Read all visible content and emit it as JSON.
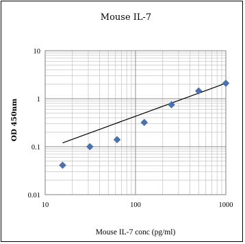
{
  "chart_data": {
    "type": "scatter",
    "title": "Mouse IL-7",
    "xlabel": "Mouse IL-7 conc (pg/ml)",
    "ylabel": "OD 450nm",
    "xscale": "log",
    "yscale": "log",
    "xlim": [
      10,
      1000
    ],
    "ylim": [
      0.01,
      10
    ],
    "x_ticks": [
      "10",
      "100",
      "1000"
    ],
    "y_ticks": [
      "0.01",
      "0.1",
      "1",
      "10"
    ],
    "grid": true,
    "legend": "none",
    "series": [
      {
        "values": [
          {
            "x": 15.6,
            "y": 0.041
          },
          {
            "x": 31.25,
            "y": 0.1
          },
          {
            "x": 62.5,
            "y": 0.14
          },
          {
            "x": 125,
            "y": 0.32
          },
          {
            "x": 250,
            "y": 0.75
          },
          {
            "x": 500,
            "y": 1.45
          },
          {
            "x": 1000,
            "y": 2.1
          }
        ],
        "marker": "diamond",
        "color": "#4a72b0"
      }
    ],
    "trendline": {
      "type": "power",
      "points": [
        {
          "x": 15.6,
          "y": 0.12
        },
        {
          "x": 1000,
          "y": 2.1
        }
      ],
      "color": "#000000"
    }
  }
}
